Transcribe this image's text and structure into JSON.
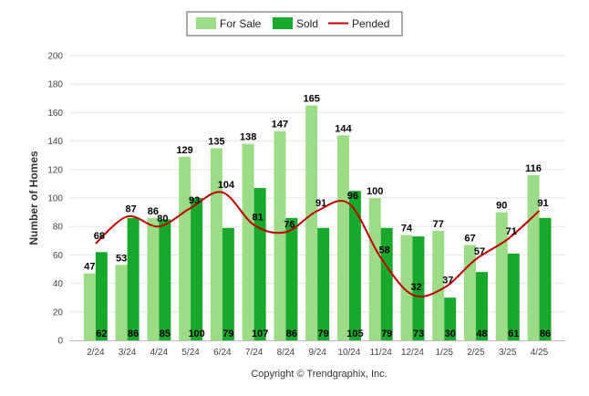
{
  "chart_data": {
    "type": "bar",
    "ylabel": "Number of Homes",
    "ylim": [
      0,
      200
    ],
    "ytick_step": 20,
    "grid": true,
    "legend_position": "top-center",
    "categories": [
      "2/24",
      "3/24",
      "4/24",
      "5/24",
      "6/24",
      "7/24",
      "8/24",
      "9/24",
      "10/24",
      "11/24",
      "12/24",
      "1/25",
      "2/25",
      "3/25",
      "4/25"
    ],
    "series": [
      {
        "name": "For Sale",
        "kind": "bar",
        "color": "#9ddc86",
        "values": [
          47,
          53,
          86,
          129,
          135,
          138,
          147,
          165,
          144,
          100,
          74,
          77,
          67,
          90,
          116
        ]
      },
      {
        "name": "Sold",
        "kind": "bar",
        "color": "#17a82c",
        "values": [
          62,
          86,
          85,
          100,
          79,
          107,
          86,
          79,
          105,
          79,
          73,
          30,
          48,
          61,
          86
        ]
      },
      {
        "name": "Pended",
        "kind": "line",
        "color": "#c00000",
        "values": [
          68,
          87,
          80,
          93,
          104,
          81,
          76,
          91,
          96,
          58,
          32,
          37,
          57,
          71,
          91
        ]
      }
    ]
  },
  "footer": {
    "copyright": "Copyright © Trendgraphix, Inc."
  }
}
